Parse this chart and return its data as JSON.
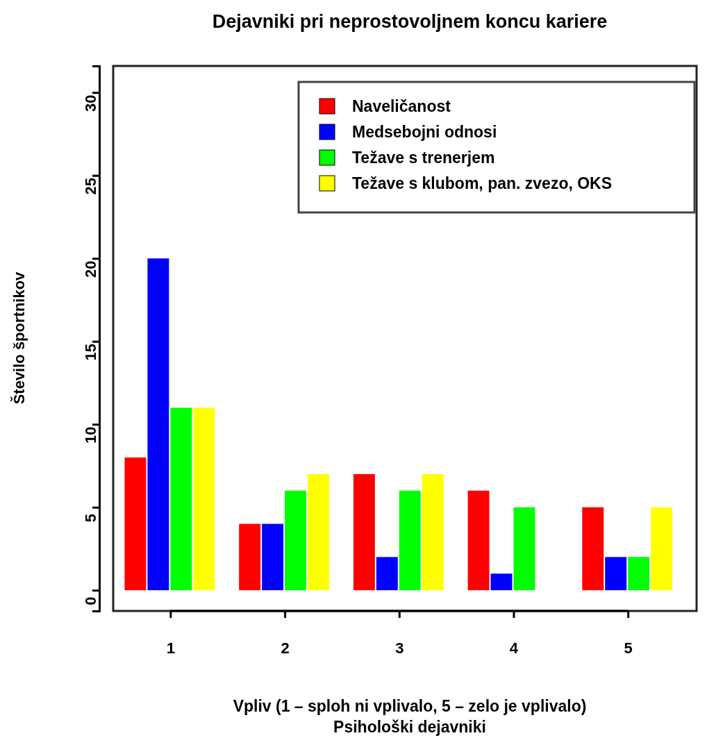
{
  "chart_data": {
    "type": "bar",
    "title": "Dejavniki pri neprostovoljnem koncu kariere",
    "subtitle": "Psihološki dejavniki",
    "xlabel": "Vpliv (1 – sploh ni vplivalo, 5 – zelo je vplivalo)",
    "ylabel": "Število športnikov",
    "categories": [
      "1",
      "2",
      "3",
      "4",
      "5"
    ],
    "series": [
      {
        "name": "Naveličanost",
        "color": "#ff0000",
        "values": [
          8,
          4,
          7,
          6,
          5
        ]
      },
      {
        "name": "Medsebojni odnosi",
        "color": "#0000ff",
        "values": [
          20,
          4,
          2,
          1,
          2
        ]
      },
      {
        "name": "Težave s trenerjem",
        "color": "#00ff00",
        "values": [
          11,
          6,
          6,
          5,
          2
        ]
      },
      {
        "name": "Težave s klubom, pan. zvezo, OKS",
        "color": "#ffff00",
        "values": [
          11,
          7,
          7,
          null,
          5
        ]
      }
    ],
    "ylim": [
      -1.25,
      31.6
    ],
    "yticks": [
      0,
      5,
      10,
      15,
      20,
      25,
      30
    ],
    "legend": "top right"
  }
}
